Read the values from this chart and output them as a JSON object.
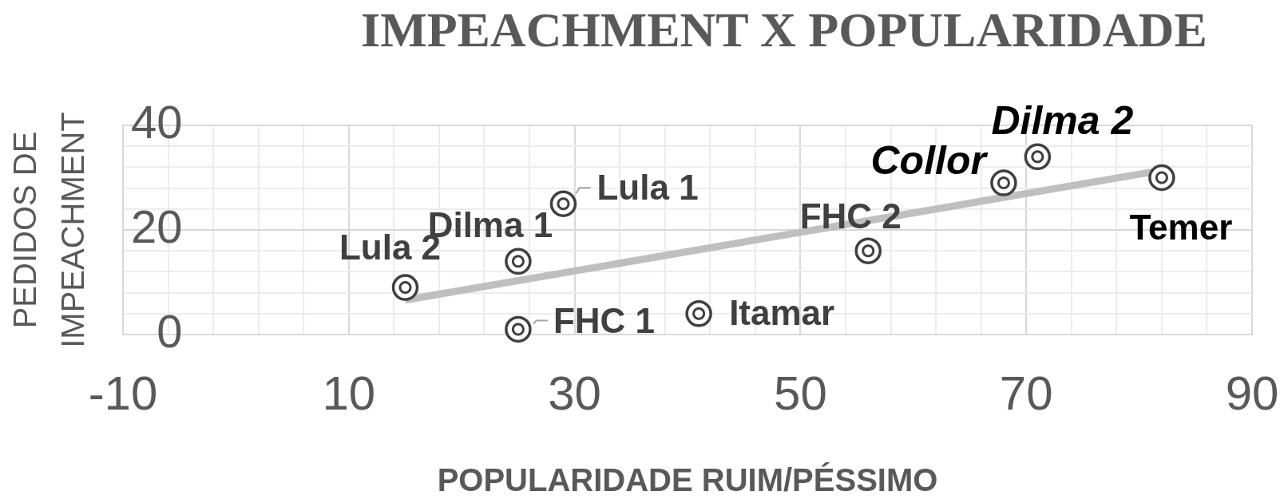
{
  "chart_data": {
    "type": "scatter",
    "title": "IMPEACHMENT X POPULARIDADE",
    "xlabel": "POPULARIDADE RUIM/PÉSSIMO",
    "ylabel": "PEDIDOS DE IMPEACHMENT",
    "series": [
      {
        "type": "scatter",
        "x": [
          15,
          25,
          29,
          25,
          41,
          56,
          68,
          71,
          82
        ],
        "values": [
          9,
          14,
          25,
          1,
          4,
          16,
          29,
          34,
          30
        ],
        "color": "#404040"
      },
      {
        "type": "line",
        "x": [
          15,
          82
        ],
        "values": [
          6.6,
          31.4
        ],
        "color": "#bfbfbf",
        "marker": "none"
      }
    ],
    "annotations": [
      {
        "text": "Lula 2",
        "x": 15,
        "y": 9
      },
      {
        "text": "Dilma 1",
        "x": 25,
        "y": 14
      },
      {
        "text": "Lula 1",
        "x": 29,
        "y": 25
      },
      {
        "text": "FHC 1",
        "x": 25,
        "y": 1
      },
      {
        "text": "Itamar",
        "x": 41,
        "y": 4
      },
      {
        "text": "FHC 2",
        "x": 56,
        "y": 16
      },
      {
        "text": "Collor",
        "x": 68,
        "y": 29
      },
      {
        "text": "Dilma 2",
        "x": 71,
        "y": 34
      },
      {
        "text": "Temer",
        "x": 82,
        "y": 30
      }
    ],
    "xlim": [
      -10,
      90
    ],
    "xticks": [
      -10,
      {
        "value": -6,
        "label": null
      },
      {
        "value": -2,
        "label": null
      },
      {
        "value": 2,
        "label": null
      },
      {
        "value": 6,
        "label": null
      },
      10,
      {
        "value": 14,
        "label": null
      },
      {
        "value": 18,
        "label": null
      },
      {
        "value": 22,
        "label": null
      },
      {
        "value": 26,
        "label": null
      },
      30,
      {
        "value": 34,
        "label": null
      },
      {
        "value": 38,
        "label": null
      },
      {
        "value": 42,
        "label": null
      },
      {
        "value": 46,
        "label": null
      },
      50,
      {
        "value": 54,
        "label": null
      },
      {
        "value": 58,
        "label": null
      },
      {
        "value": 62,
        "label": null
      },
      {
        "value": 66,
        "label": null
      },
      70,
      {
        "value": 74,
        "label": null
      },
      {
        "value": 78,
        "label": null
      },
      {
        "value": 82,
        "label": null
      },
      {
        "value": 86,
        "label": null
      },
      90
    ],
    "ylim": [
      0,
      40
    ],
    "yticks": [
      0,
      {
        "value": 4,
        "label": null
      },
      {
        "value": 8,
        "label": null
      },
      {
        "value": 12,
        "label": null
      },
      {
        "value": 16,
        "label": null
      },
      20,
      {
        "value": 24,
        "label": null
      },
      {
        "value": 28,
        "label": null
      },
      {
        "value": 32,
        "label": null
      },
      {
        "value": 36,
        "label": null
      },
      40
    ],
    "grid": true,
    "marker": "circle"
  }
}
